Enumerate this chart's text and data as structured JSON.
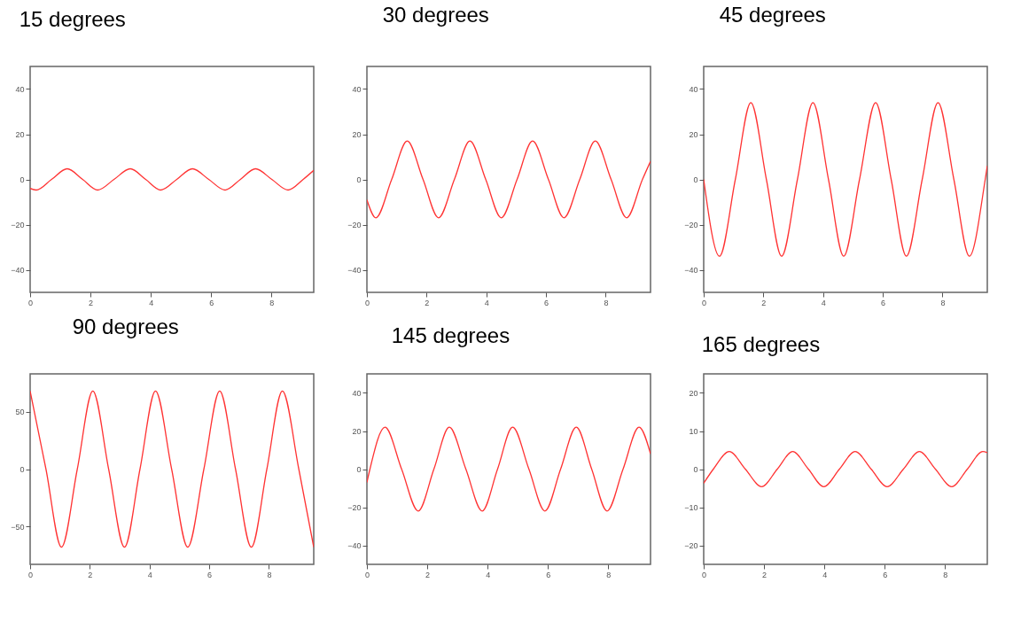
{
  "chart_data": [
    {
      "type": "line",
      "title": "15 degrees",
      "xlim": [
        0,
        9.4
      ],
      "ylim": [
        -50,
        50
      ],
      "xticks": [
        0,
        2,
        4,
        6,
        8
      ],
      "yticks": [
        -40,
        -20,
        0,
        20,
        40
      ],
      "series": [
        {
          "color": "#ff3333",
          "x": [
            0,
            0.2,
            0.71,
            1.23,
            1.74,
            2.24,
            2.78,
            3.32,
            3.83,
            4.33,
            4.86,
            5.38,
            5.92,
            6.46,
            6.97,
            7.47,
            8.01,
            8.55,
            9.05,
            9.4
          ],
          "values": [
            -4,
            -4.7,
            0,
            4.7,
            0,
            -4.7,
            0,
            4.7,
            0,
            -4.7,
            0,
            4.7,
            0,
            -4.7,
            0,
            4.7,
            0,
            -4.7,
            0,
            4
          ]
        }
      ]
    },
    {
      "type": "line",
      "title": "30 degrees",
      "xlim": [
        0,
        9.5
      ],
      "ylim": [
        -50,
        50
      ],
      "xticks": [
        0,
        2,
        4,
        6,
        8
      ],
      "yticks": [
        -40,
        -20,
        0,
        20,
        40
      ],
      "series": [
        {
          "color": "#ff3333",
          "x": [
            0,
            0.3,
            0.83,
            1.35,
            1.88,
            2.4,
            2.93,
            3.45,
            3.98,
            4.5,
            5.03,
            5.55,
            6.08,
            6.6,
            7.13,
            7.65,
            8.18,
            8.7,
            9.23,
            9.5
          ],
          "values": [
            -9,
            -17,
            0,
            17,
            0,
            -17,
            0,
            17,
            0,
            -17,
            0,
            17,
            0,
            -17,
            0,
            17,
            0,
            -17,
            0,
            8
          ]
        }
      ]
    },
    {
      "type": "line",
      "title": "45 degrees",
      "xlim": [
        0,
        9.5
      ],
      "ylim": [
        -50,
        50
      ],
      "xticks": [
        0,
        2,
        4,
        6,
        8
      ],
      "yticks": [
        -40,
        -20,
        0,
        20,
        40
      ],
      "series": [
        {
          "color": "#ff3333",
          "x": [
            0,
            0.53,
            1.06,
            1.58,
            2.1,
            2.61,
            3.14,
            3.66,
            4.18,
            4.69,
            5.22,
            5.76,
            6.28,
            6.79,
            7.32,
            7.85,
            8.38,
            8.9,
            9.43,
            9.5
          ],
          "values": [
            0,
            -34,
            0,
            34,
            0,
            -34,
            0,
            34,
            0,
            -34,
            0,
            34,
            0,
            -34,
            0,
            34,
            0,
            -34,
            0,
            6
          ]
        }
      ]
    },
    {
      "type": "line",
      "title": "90 degrees",
      "xlim": [
        0,
        9.5
      ],
      "ylim": [
        -83,
        83
      ],
      "xticks": [
        0,
        2,
        4,
        6,
        8
      ],
      "yticks": [
        -50,
        0,
        50
      ],
      "series": [
        {
          "color": "#ff3333",
          "x": [
            0,
            0.53,
            1.05,
            1.58,
            2.1,
            2.63,
            3.16,
            3.68,
            4.2,
            4.74,
            5.28,
            5.82,
            6.35,
            6.88,
            7.41,
            7.93,
            8.45,
            9,
            9.5
          ],
          "values": [
            68,
            0,
            -68,
            0,
            68,
            0,
            -68,
            0,
            68,
            0,
            -68,
            0,
            68,
            0,
            -68,
            0,
            68,
            0,
            -68
          ]
        }
      ]
    },
    {
      "type": "line",
      "title": "145 degrees",
      "xlim": [
        0,
        9.4
      ],
      "ylim": [
        -50,
        50
      ],
      "xticks": [
        0,
        2,
        4,
        6,
        8
      ],
      "yticks": [
        -40,
        -20,
        0,
        20,
        40
      ],
      "series": [
        {
          "color": "#ff3333",
          "x": [
            0,
            0.1,
            0.6,
            1.15,
            1.7,
            2.22,
            2.73,
            3.28,
            3.82,
            4.33,
            4.83,
            5.37,
            5.9,
            6.42,
            6.94,
            7.45,
            7.96,
            8.49,
            9.02,
            9.4
          ],
          "values": [
            -7,
            0,
            22,
            0,
            -22,
            0,
            22,
            0,
            -22,
            0,
            22,
            0,
            -22,
            0,
            22,
            0,
            -22,
            0,
            22,
            8
          ]
        }
      ]
    },
    {
      "type": "line",
      "title": "165 degrees",
      "xlim": [
        0,
        9.4
      ],
      "ylim": [
        -25,
        25
      ],
      "xticks": [
        0,
        2,
        4,
        6,
        8
      ],
      "yticks": [
        -20,
        -10,
        0,
        10,
        20
      ],
      "series": [
        {
          "color": "#ff3333",
          "x": [
            0,
            0.32,
            0.85,
            1.38,
            1.92,
            2.44,
            2.95,
            3.47,
            3.98,
            4.5,
            5.02,
            5.55,
            6.08,
            6.62,
            7.15,
            7.68,
            8.22,
            8.74,
            9.25,
            9.4
          ],
          "values": [
            -3.7,
            0,
            4.6,
            0,
            -4.6,
            0,
            4.6,
            0,
            -4.6,
            0,
            4.6,
            0,
            -4.6,
            0,
            4.6,
            0,
            -4.6,
            0,
            4.6,
            4.3
          ]
        }
      ]
    }
  ]
}
